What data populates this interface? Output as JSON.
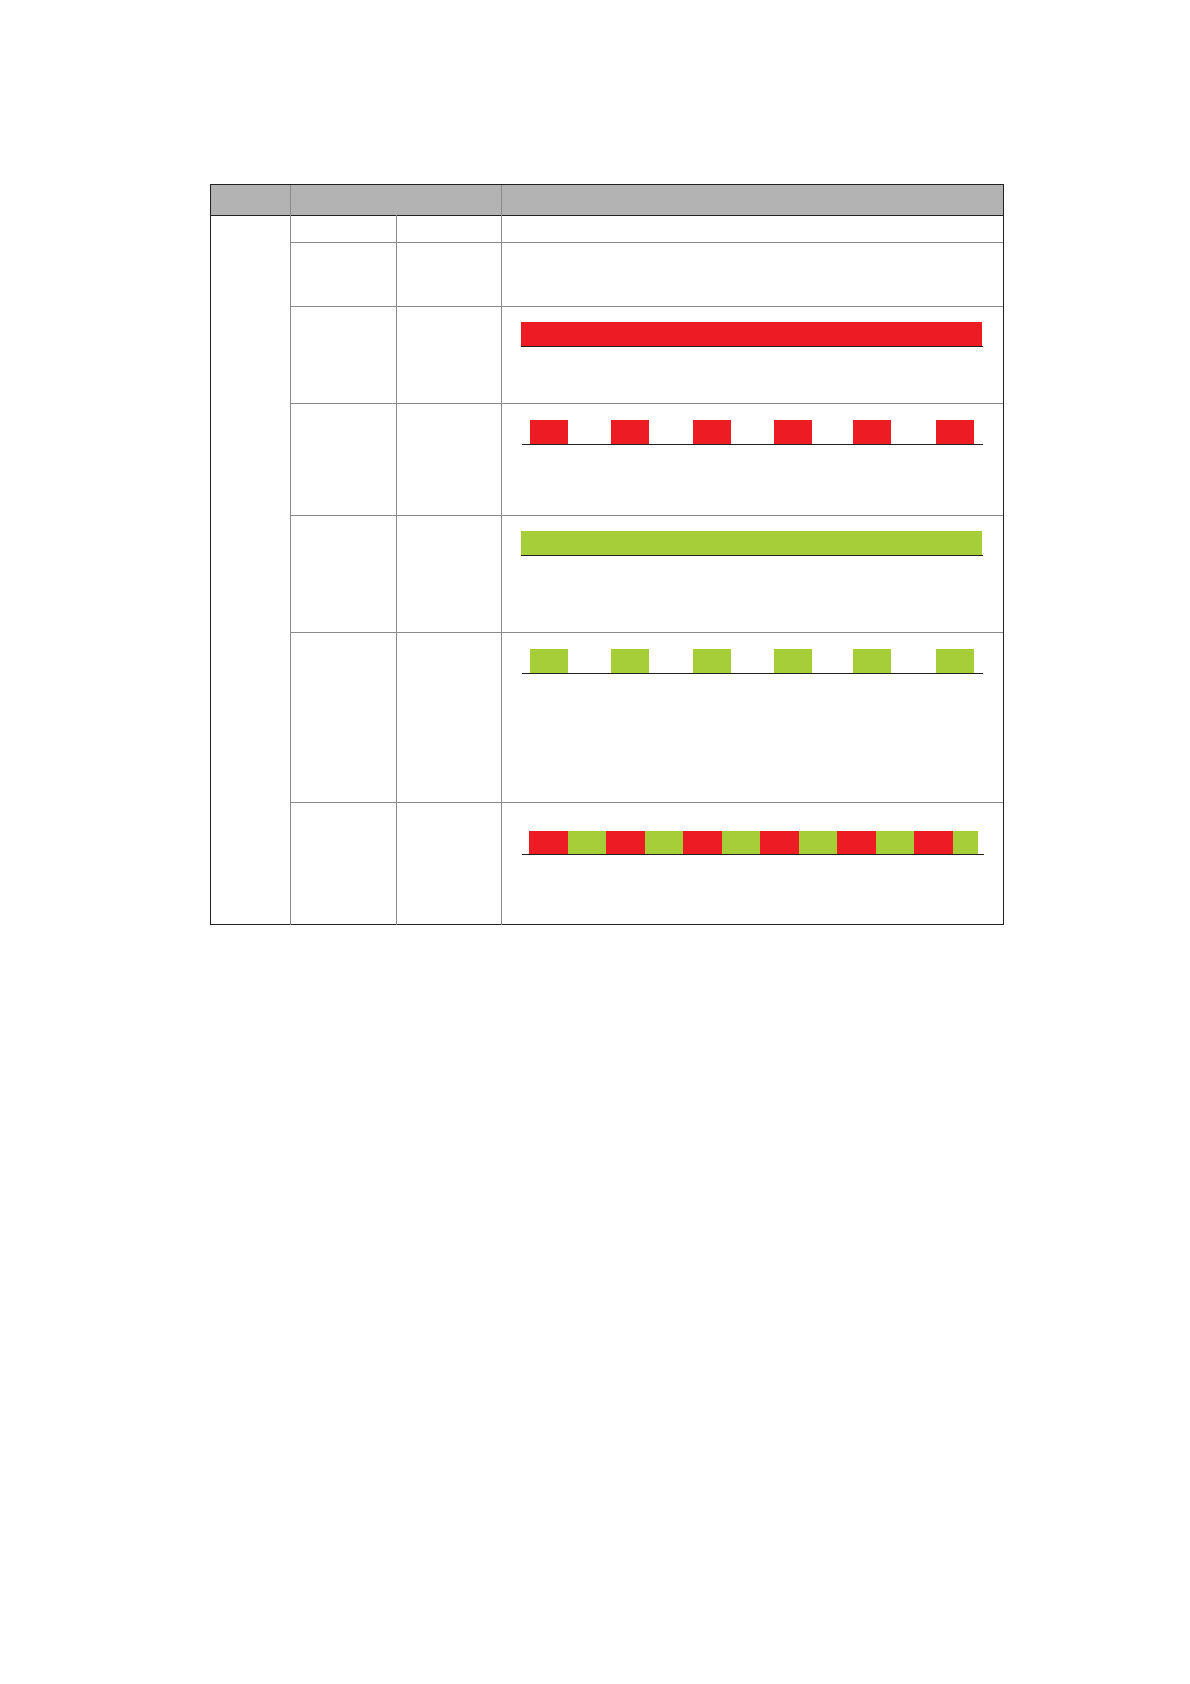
{
  "colors": {
    "header": "#b3b3b3",
    "red": "#ed1c24",
    "green": "#a6ce39"
  },
  "rows": [
    {
      "pattern": "none"
    },
    {
      "pattern": "none"
    },
    {
      "pattern": "solid",
      "color": "red"
    },
    {
      "pattern": "pulses",
      "color": "red",
      "count": 6
    },
    {
      "pattern": "solid",
      "color": "green"
    },
    {
      "pattern": "pulses",
      "color": "green",
      "count": 6
    },
    {
      "pattern": "alternating",
      "colors": [
        "red",
        "green"
      ],
      "count": 12
    }
  ]
}
